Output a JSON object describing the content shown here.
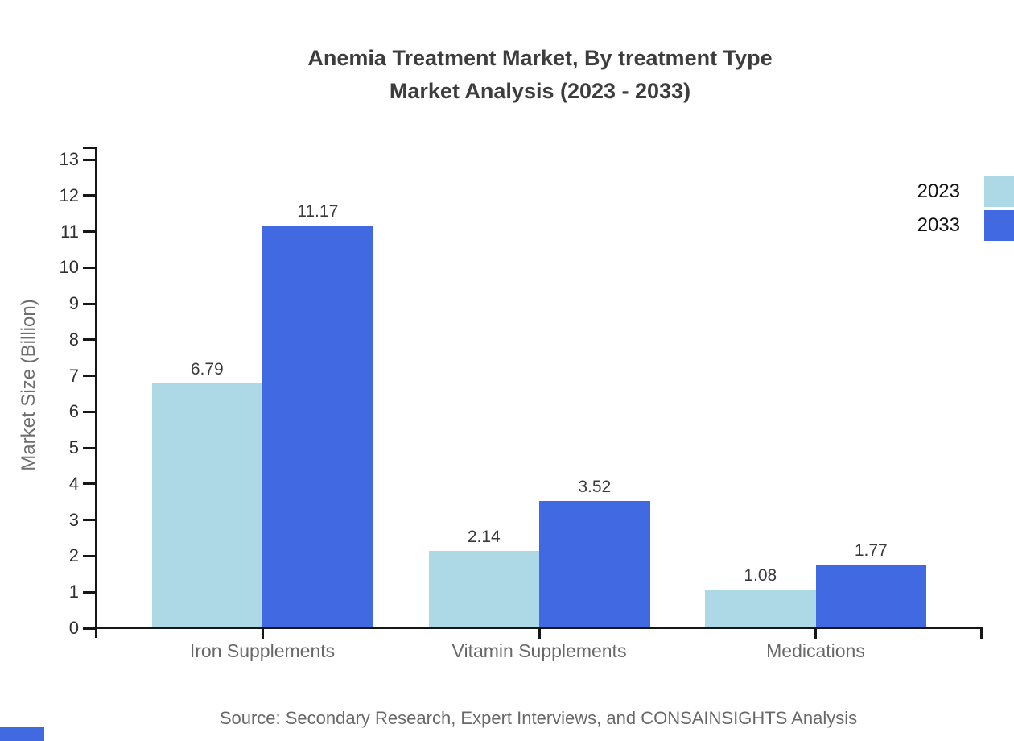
{
  "title": {
    "line1": "Anemia Treatment Market, By treatment Type",
    "line2": "Market Analysis (2023 - 2033)"
  },
  "y_axis_label": "Market Size (Billion)",
  "source": "Source: Secondary Research, Expert Interviews, and CONSAINSIGHTS Analysis",
  "legend": [
    {
      "label": "2023",
      "color": "#add8e6"
    },
    {
      "label": "2033",
      "color": "#4169e1"
    }
  ],
  "colors": {
    "series_2023": "#add8e6",
    "series_2033": "#4169e1",
    "axis": "#161616",
    "title_text": "#3d3d3d",
    "muted_text": "#686868",
    "value_text": "#3a3a3a",
    "watermark": "#4169e1"
  },
  "chart_data": {
    "type": "bar",
    "categories": [
      "Iron Supplements",
      "Vitamin Supplements",
      "Medications"
    ],
    "series": [
      {
        "name": "2023",
        "values": [
          6.79,
          2.14,
          1.08
        ],
        "color": "#add8e6"
      },
      {
        "name": "2033",
        "values": [
          11.17,
          3.52,
          1.77
        ],
        "color": "#4169e1"
      }
    ],
    "value_labels": [
      [
        "6.79",
        "2.14",
        "1.08"
      ],
      [
        "11.17",
        "3.52",
        "1.77"
      ]
    ],
    "title": "Anemia Treatment Market, By treatment Type Market Analysis (2023 - 2033)",
    "xlabel": "",
    "ylabel": "Market Size (Billion)",
    "ylim": [
      0,
      13
    ],
    "yticks": [
      0,
      1,
      2,
      3,
      4,
      5,
      6,
      7,
      8,
      9,
      10,
      11,
      12,
      13
    ],
    "grid": false,
    "legend_position": "top-right"
  }
}
